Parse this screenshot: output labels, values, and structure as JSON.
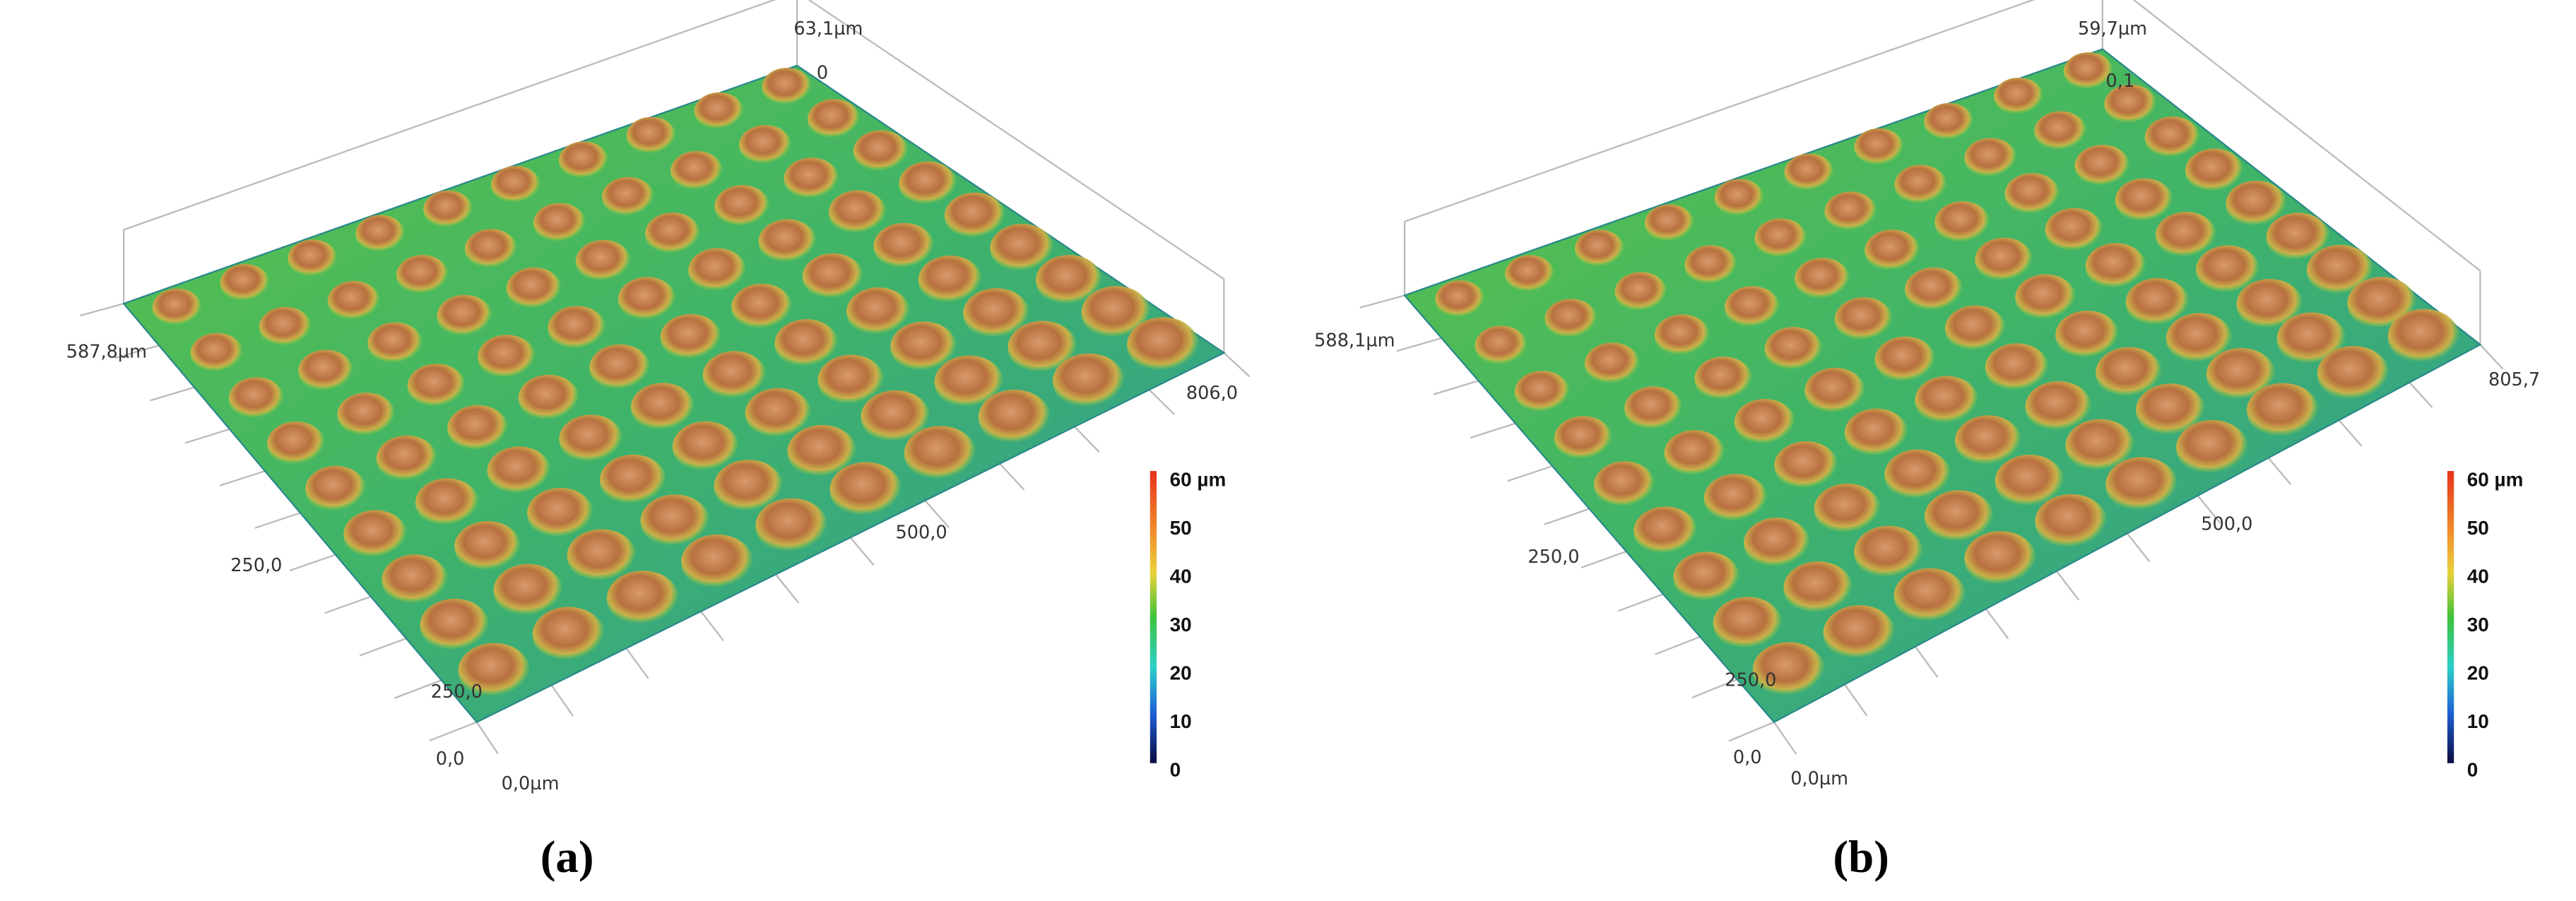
{
  "panels": [
    {
      "label": "(a)",
      "z_max_label": "63,1µm",
      "z_min_label": "0",
      "y_max_label": "587,8µm",
      "x_max_label": "806,0",
      "x_mid_label": "500,0",
      "y_mid_label": "250,0",
      "x_low_label": "250,0",
      "origin_y_label": "0,0",
      "origin_x_label": "0,0µm",
      "colorbar": [
        "60 µm",
        "50",
        "40",
        "30",
        "20",
        "10",
        "0"
      ]
    },
    {
      "label": "(b)",
      "z_max_label": "59,7µm",
      "z_min_label": "0,1",
      "y_max_label": "588,1µm",
      "x_max_label": "805,7",
      "x_mid_label": "500,0",
      "y_mid_label": "250,0",
      "x_low_label": "250,0",
      "origin_y_label": "0,0",
      "origin_x_label": "0,0µm",
      "colorbar": [
        "60 µm",
        "50",
        "40",
        "30",
        "20",
        "10",
        "0"
      ]
    }
  ]
}
